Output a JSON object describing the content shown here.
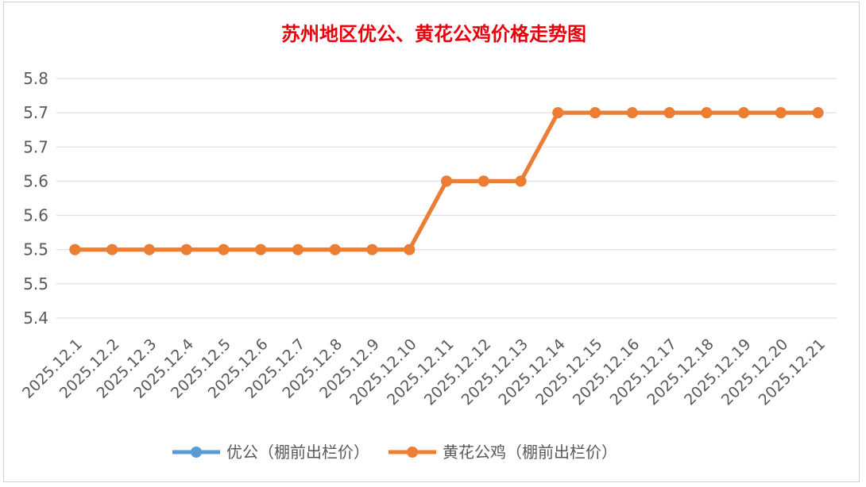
{
  "chart_data": {
    "type": "line",
    "title": "苏州地区优公、黄花公鸡价格走势图",
    "xlabel": "",
    "ylabel": "",
    "categories": [
      "2025.12.1",
      "2025.12.2",
      "2025.12.3",
      "2025.12.4",
      "2025.12.5",
      "2025.12.6",
      "2025.12.7",
      "2025.12.8",
      "2025.12.9",
      "2025.12.10",
      "2025.12.11",
      "2025.12.12",
      "2025.12.13",
      "2025.12.14",
      "2025.12.15",
      "2025.12.16",
      "2025.12.17",
      "2025.12.18",
      "2025.12.19",
      "2025.12.20",
      "2025.12.21"
    ],
    "ytick_labels": [
      "5.8",
      "5.7",
      "5.7",
      "5.6",
      "5.6",
      "5.5",
      "5.5",
      "5.4"
    ],
    "ylim": [
      5.4,
      5.75
    ],
    "grid": true,
    "legend_position": "bottom",
    "series": [
      {
        "name": "优公（棚前出栏价）",
        "color": "#5b9bd5",
        "values": [
          5.5,
          5.5,
          5.5,
          5.5,
          5.5,
          5.5,
          5.5,
          5.5,
          5.5,
          5.5,
          5.6,
          5.6,
          5.6,
          5.7,
          5.7,
          5.7,
          5.7,
          5.7,
          5.7,
          5.7,
          5.7
        ]
      },
      {
        "name": "黄花公鸡（棚前出栏价）",
        "color": "#ed7d31",
        "values": [
          5.5,
          5.5,
          5.5,
          5.5,
          5.5,
          5.5,
          5.5,
          5.5,
          5.5,
          5.5,
          5.6,
          5.6,
          5.6,
          5.7,
          5.7,
          5.7,
          5.7,
          5.7,
          5.7,
          5.7,
          5.7
        ]
      }
    ]
  }
}
